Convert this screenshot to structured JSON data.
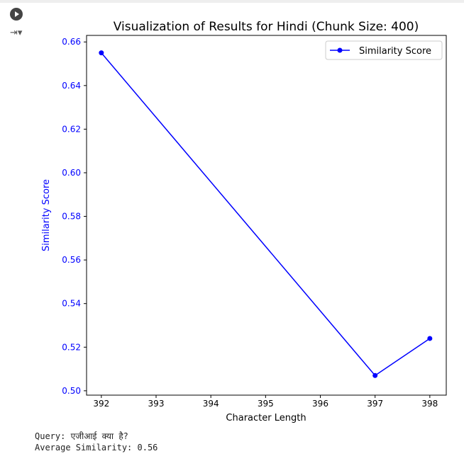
{
  "chart_data": {
    "type": "line",
    "title": "Visualization of Results for Hindi (Chunk Size: 400)",
    "xlabel": "Character Length",
    "ylabel": "Similarity Score",
    "x": [
      392,
      397,
      398
    ],
    "series": [
      {
        "name": "Similarity Score",
        "values": [
          0.655,
          0.507,
          0.524
        ],
        "color": "#0000ff",
        "marker": "circle"
      }
    ],
    "xticks": [
      392,
      393,
      394,
      395,
      396,
      397,
      398
    ],
    "yticks": [
      0.5,
      0.52,
      0.54,
      0.56,
      0.58,
      0.6,
      0.62,
      0.64,
      0.66
    ],
    "xlim": [
      391.73,
      398.3
    ],
    "ylim": [
      0.498,
      0.663
    ],
    "grid": false,
    "legend": "top-right",
    "ytick_color": "#0000ff"
  },
  "output": {
    "query": "Query: एजीआई क्या है?",
    "average": "Average Similarity: 0.56"
  },
  "icons": [
    "play-icon",
    "output-toggle-icon"
  ]
}
